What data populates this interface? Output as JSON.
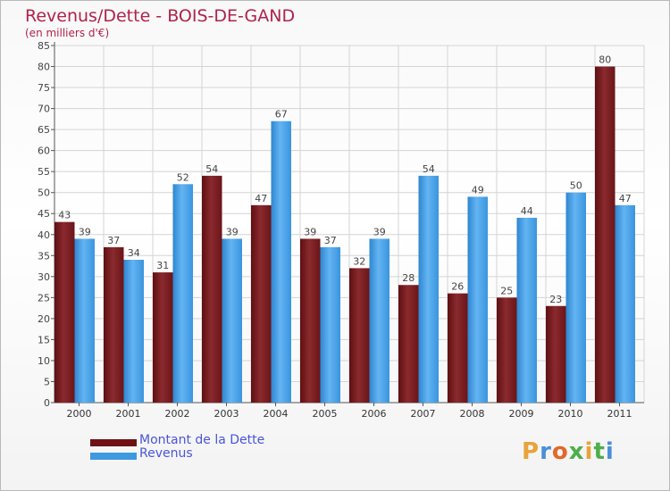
{
  "title": "Revenus/Dette - BOIS-DE-GAND",
  "subtitle": "(en milliers d'€)",
  "brand": {
    "text": "Proxiti",
    "colors": [
      "#e8a33a",
      "#4a8fd8",
      "#e2682a",
      "#4fae4a",
      "#e8a33a",
      "#4fae4a",
      "#4a8fd8"
    ]
  },
  "chart_data": {
    "type": "bar",
    "categories": [
      "2000",
      "2001",
      "2002",
      "2003",
      "2004",
      "2005",
      "2006",
      "2007",
      "2008",
      "2009",
      "2010",
      "2011"
    ],
    "series": [
      {
        "name": "Montant de la Dette",
        "color": "#7a1a1c",
        "values": [
          43,
          37,
          31,
          54,
          47,
          39,
          32,
          28,
          26,
          25,
          23,
          80
        ]
      },
      {
        "name": "Revenus",
        "color": "#3d9ae0",
        "values": [
          39,
          34,
          52,
          39,
          67,
          37,
          39,
          54,
          49,
          44,
          50,
          47
        ]
      }
    ],
    "ylim": [
      0,
      85
    ],
    "yticks": [
      0,
      5,
      10,
      15,
      20,
      25,
      30,
      35,
      40,
      45,
      50,
      55,
      60,
      65,
      70,
      75,
      80,
      85
    ],
    "grid": true,
    "legend": "bottom-left"
  }
}
